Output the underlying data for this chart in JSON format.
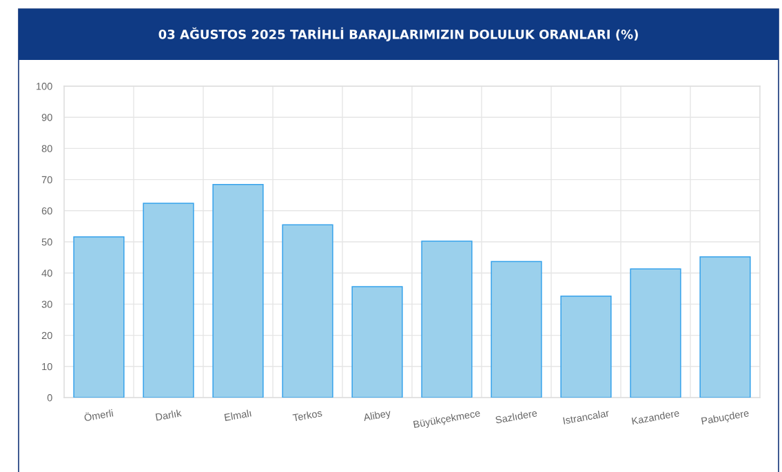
{
  "chart_data": {
    "type": "bar",
    "title": "03 AĞUSTOS 2025 TARİHLİ BARAJLARIMIZIN DOLULUK ORANLARI (%)",
    "categories": [
      "Ömerli",
      "Darlık",
      "Elmalı",
      "Terkos",
      "Alibey",
      "Büyükçekmece",
      "Sazlıdere",
      "Istrancalar",
      "Kazandere",
      "Pabuçdere"
    ],
    "values": [
      51.6,
      62.4,
      68.4,
      55.5,
      35.6,
      50.2,
      43.7,
      32.6,
      41.3,
      45.2
    ],
    "color": "#9bd0ec",
    "ylim": [
      0,
      100
    ],
    "yticks": [
      0,
      10,
      20,
      30,
      40,
      50,
      60,
      70,
      80,
      90,
      100
    ],
    "grid": true
  }
}
